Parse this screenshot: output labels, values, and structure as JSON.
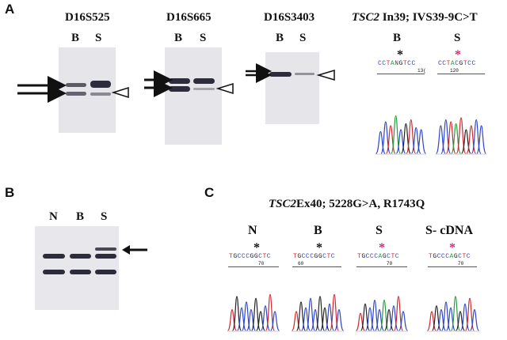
{
  "panels": {
    "A": {
      "letter": "A",
      "markers": [
        "D16S525",
        "D16S665",
        "D16S3403"
      ],
      "lanes": [
        "B",
        "S"
      ],
      "seq_title_gene": "TSC2",
      "seq_title_rest": " In39; IVS39-9C>T",
      "seq_lanes": [
        "B",
        "S"
      ],
      "seq_B": {
        "text": "CCTANGTCC",
        "num": "13("
      },
      "seq_S": {
        "text": "CCTACGTCC",
        "num": "120"
      }
    },
    "B": {
      "letter": "B",
      "lanes": [
        "N",
        "B",
        "S"
      ]
    },
    "C": {
      "letter": "C",
      "title_gene": "TSC2",
      "title_rest": "Ex40; 5228G>A, R1743Q",
      "lanes": [
        "N",
        "B",
        "S",
        "S- cDNA"
      ],
      "seqs": [
        {
          "text": "TGCCCGGCTC",
          "num": "70"
        },
        {
          "text": "TGCCCGGCTC",
          "num": "60"
        },
        {
          "text": "TGCCCAGCTC",
          "num": "70"
        },
        {
          "text": "TGCCCAGCTC",
          "num": "70"
        }
      ]
    }
  },
  "colors": {
    "gel_bg": "#e6e6ea",
    "band": "#2c2c3c",
    "trace_A": "#2a9a3a",
    "trace_C": "#2f46c8",
    "trace_G": "#222222",
    "trace_T": "#d0282e",
    "star_black": "#111111",
    "star_pink": "#e0227a"
  }
}
